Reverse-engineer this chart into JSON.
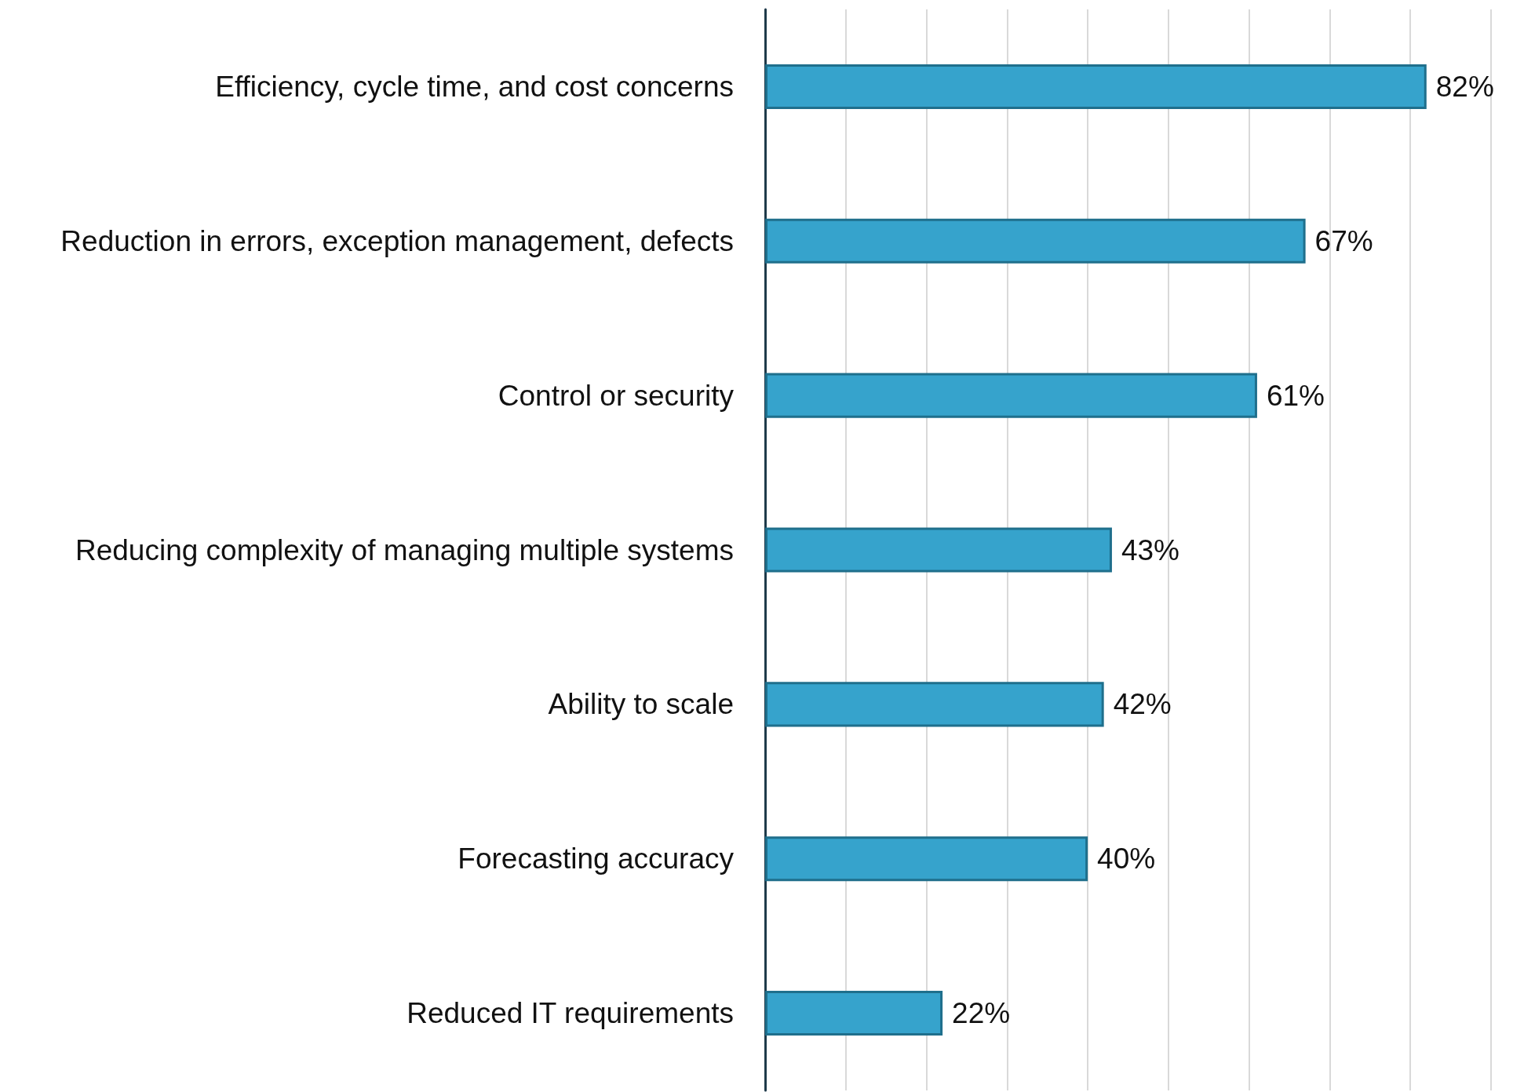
{
  "chart_data": {
    "type": "bar",
    "orientation": "horizontal",
    "categories": [
      "Efficiency, cycle time, and cost concerns",
      "Reduction in errors, exception management, defects",
      "Control or security",
      "Reducing complexity of managing multiple systems",
      "Ability to scale",
      "Forecasting accuracy",
      "Reduced IT requirements"
    ],
    "values": [
      82,
      67,
      61,
      43,
      42,
      40,
      22
    ],
    "value_labels": [
      "82%",
      "67%",
      "61%",
      "43%",
      "42%",
      "40%",
      "22%"
    ],
    "color": "#36a3cc",
    "xlim": [
      0,
      90
    ],
    "xticks": [
      {
        "value": 0,
        "label": null
      },
      {
        "value": 10,
        "label": null
      },
      {
        "value": 20,
        "label": null
      },
      {
        "value": 30,
        "label": null
      },
      {
        "value": 40,
        "label": null
      },
      {
        "value": 50,
        "label": null
      },
      {
        "value": 60,
        "label": null
      },
      {
        "value": 70,
        "label": null
      },
      {
        "value": 80,
        "label": null
      },
      {
        "value": 90,
        "label": null
      }
    ],
    "grid": "x",
    "tick_labels": "y"
  }
}
